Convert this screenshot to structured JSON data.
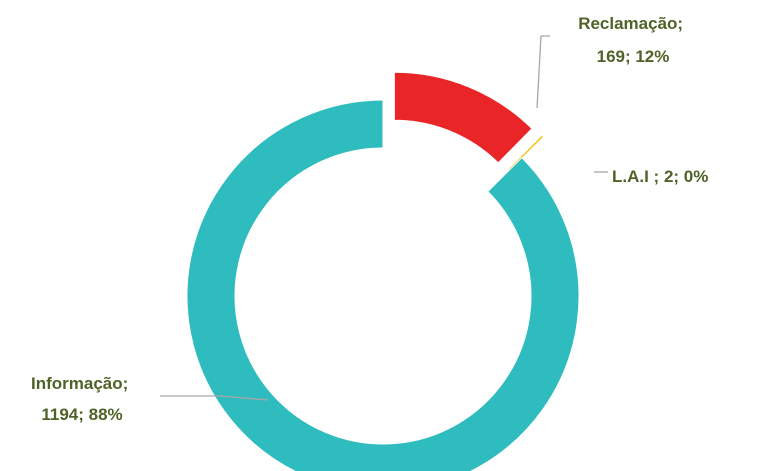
{
  "chart_data": {
    "type": "doughnut",
    "title": "",
    "slices": [
      {
        "name": "Informação",
        "value": 1194,
        "percent": 88,
        "color": "#2FBCBF",
        "label_lines": [
          "Informação;",
          "1194; 88%"
        ]
      },
      {
        "name": "Reclamação",
        "value": 169,
        "percent": 12,
        "color": "#E92527",
        "label_lines": [
          "Reclamação;",
          "169; 12%"
        ]
      },
      {
        "name": "L.A.I",
        "value": 2,
        "percent": 0,
        "color": "#F2C314",
        "label_lines": [
          "L.A.I ; 2; 0%"
        ]
      }
    ],
    "label_color": "#4F6228",
    "leader_line_color": "#A6A6A6",
    "legend": "none",
    "exploded_slices": [
      "Reclamação",
      "L.A.I"
    ]
  }
}
